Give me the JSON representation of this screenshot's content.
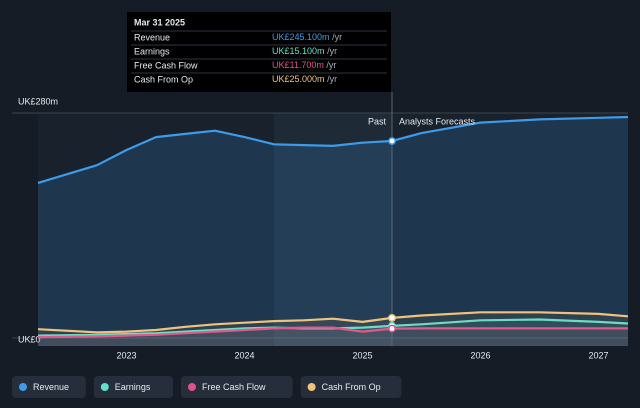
{
  "chart_data": {
    "type": "area",
    "x": [
      2022.25,
      2022.75,
      2023,
      2023.25,
      2023.5,
      2023.75,
      2024,
      2024.25,
      2024.5,
      2024.75,
      2025,
      2025.25,
      2025.5,
      2026,
      2026.5,
      2027,
      2027.25
    ],
    "xlim": [
      2022.25,
      2027.25
    ],
    "xticks": [
      2023,
      2024,
      2025,
      2026,
      2027
    ],
    "ylim": [
      0,
      280
    ],
    "yticks": [
      {
        "value": 0,
        "label": "UK£0"
      },
      {
        "value": 280,
        "label": "UK£280m"
      }
    ],
    "past_end": 2025.25,
    "highlight_start": 2024.25,
    "past_label": "Past",
    "forecast_label": "Analysts Forecasts",
    "series": [
      {
        "name": "Revenue",
        "color": "#3d9be9",
        "values": [
          193,
          215,
          234,
          250,
          254,
          258,
          250,
          241,
          240,
          239,
          243,
          245.1,
          255,
          268,
          272,
          274,
          275
        ]
      },
      {
        "name": "Earnings",
        "color": "#5fe0c9",
        "values": [
          3,
          4,
          5,
          6,
          8,
          10,
          12,
          13,
          12,
          12,
          13,
          15.1,
          17,
          22,
          23,
          20,
          18
        ]
      },
      {
        "name": "Free Cash Flow",
        "color": "#e0508b",
        "values": [
          1,
          2,
          3,
          4,
          6,
          8,
          10,
          12,
          13,
          13,
          8,
          11.7,
          12,
          12,
          12,
          12,
          12
        ]
      },
      {
        "name": "Cash From Op",
        "color": "#f1c27b",
        "values": [
          11,
          7,
          8,
          10,
          14,
          17,
          19,
          21,
          22,
          24,
          20,
          25,
          28,
          32,
          32,
          30,
          27
        ]
      }
    ],
    "tooltip": {
      "date": "Mar 31 2025",
      "rows": [
        {
          "label": "Revenue",
          "value": "UK£245.100m",
          "unit": "/yr"
        },
        {
          "label": "Earnings",
          "value": "UK£15.100m",
          "unit": "/yr"
        },
        {
          "label": "Free Cash Flow",
          "value": "UK£11.700m",
          "unit": "/yr"
        },
        {
          "label": "Cash From Op",
          "value": "UK£25.000m",
          "unit": "/yr"
        }
      ]
    }
  }
}
